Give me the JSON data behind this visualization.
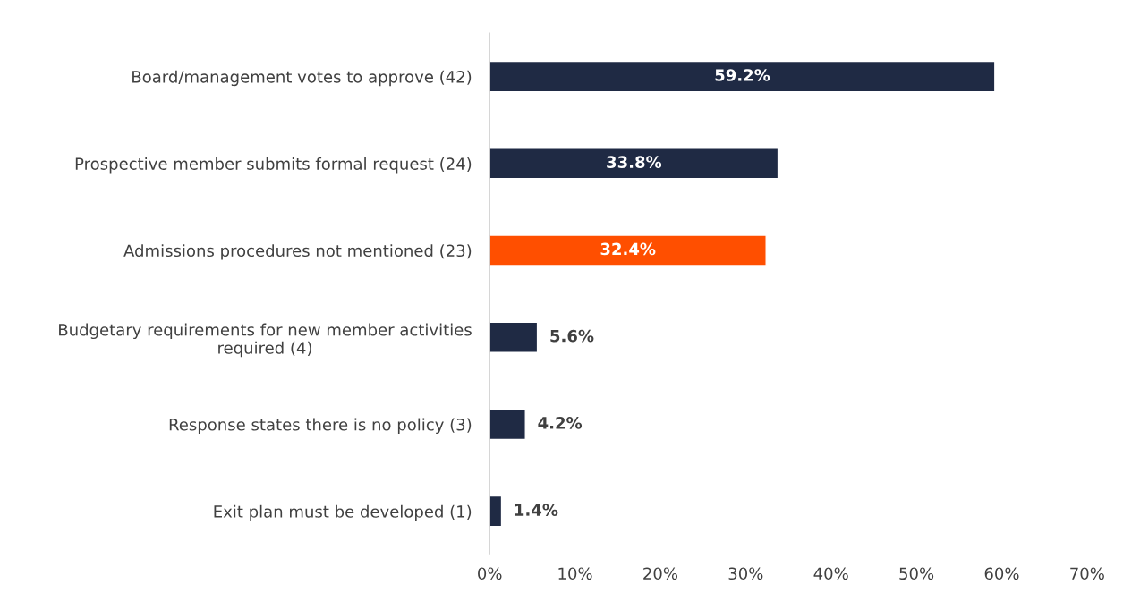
{
  "chart_data": {
    "type": "bar",
    "orientation": "horizontal",
    "categories": [
      "Board/management votes to approve (42)",
      "Prospective member submits formal request (24)",
      "Admissions procedures not mentioned (23)",
      "Budgetary requirements for new member activities\nrequired (4)",
      "Response states there is no policy (3)",
      "Exit plan must be developed (1)"
    ],
    "values": [
      59.2,
      33.8,
      32.4,
      5.6,
      4.2,
      1.4
    ],
    "colors": [
      "#1f2a44",
      "#1f2a44",
      "#ff4f00",
      "#1f2a44",
      "#1f2a44",
      "#1f2a44"
    ],
    "value_labels": [
      "59.2%",
      "33.8%",
      "32.4%",
      "5.6%",
      "4.2%",
      "1.4%"
    ],
    "xlim": [
      0,
      70
    ],
    "xticks": [
      {
        "value": 0,
        "label": "0%"
      },
      {
        "value": 10,
        "label": "10%"
      },
      {
        "value": 20,
        "label": "20%"
      },
      {
        "value": 30,
        "label": "30%"
      },
      {
        "value": 40,
        "label": "40%"
      },
      {
        "value": 50,
        "label": "50%"
      },
      {
        "value": 60,
        "label": "60%"
      },
      {
        "value": 70,
        "label": "70%"
      }
    ],
    "grid": false,
    "legend": false
  }
}
